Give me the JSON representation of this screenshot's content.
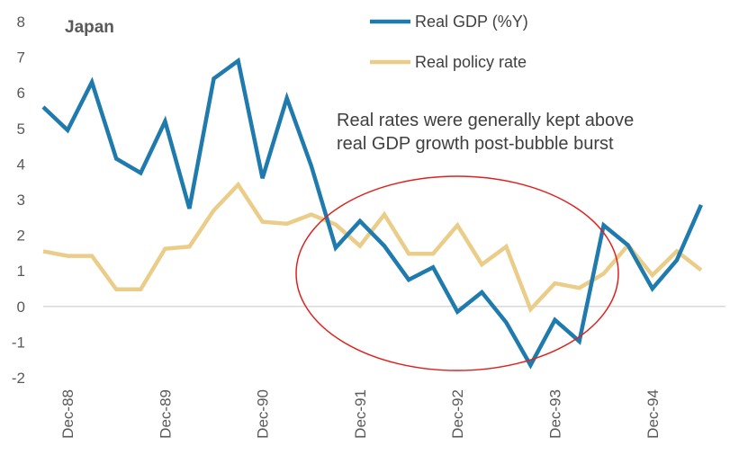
{
  "chart_data": {
    "type": "line",
    "title": "Japan",
    "xlabel": "",
    "ylabel": "",
    "ylim": [
      -2,
      8
    ],
    "yticks": [
      -2,
      -1,
      0,
      1,
      2,
      3,
      4,
      5,
      6,
      7,
      8
    ],
    "xticks": [
      "Dec-88",
      "Dec-89",
      "Dec-90",
      "Dec-91",
      "Dec-92",
      "Dec-93",
      "Dec-94"
    ],
    "x": [
      "Sep-88",
      "Dec-88",
      "Mar-89",
      "Jun-89",
      "Sep-89",
      "Dec-89",
      "Mar-90",
      "Jun-90",
      "Sep-90",
      "Dec-90",
      "Mar-91",
      "Jun-91",
      "Sep-91",
      "Dec-91",
      "Mar-92",
      "Jun-92",
      "Sep-92",
      "Dec-92",
      "Mar-93",
      "Jun-93",
      "Sep-93",
      "Dec-93",
      "Mar-94",
      "Jun-94",
      "Sep-94",
      "Dec-94",
      "Mar-95",
      "Jun-95",
      "Sep-95"
    ],
    "series": [
      {
        "name": "Real GDP (%Y)",
        "color": "#1f7bad",
        "values": [
          5.6,
          4.95,
          6.3,
          4.15,
          3.75,
          5.2,
          2.75,
          6.4,
          6.9,
          3.6,
          5.85,
          3.95,
          1.65,
          2.4,
          1.7,
          0.75,
          1.1,
          -0.15,
          0.4,
          -0.45,
          -1.65,
          -0.38,
          -0.98,
          2.28,
          1.72,
          0.5,
          1.3,
          2.85,
          null
        ]
      },
      {
        "name": "Real policy rate",
        "color": "#ebcd8a",
        "values": [
          1.55,
          1.42,
          1.42,
          0.48,
          0.48,
          1.62,
          1.68,
          2.7,
          3.42,
          2.38,
          2.32,
          2.58,
          2.3,
          1.7,
          2.58,
          1.48,
          1.48,
          2.28,
          1.18,
          1.68,
          -0.08,
          0.65,
          0.52,
          0.92,
          1.72,
          0.88,
          1.55,
          1.02,
          null
        ]
      }
    ],
    "annotation": [
      "Real rates were generally kept above",
      "real GDP growth post-bubble burst"
    ],
    "highlight_color": "#e0201b",
    "legend_position": "top-center",
    "grid": false
  }
}
